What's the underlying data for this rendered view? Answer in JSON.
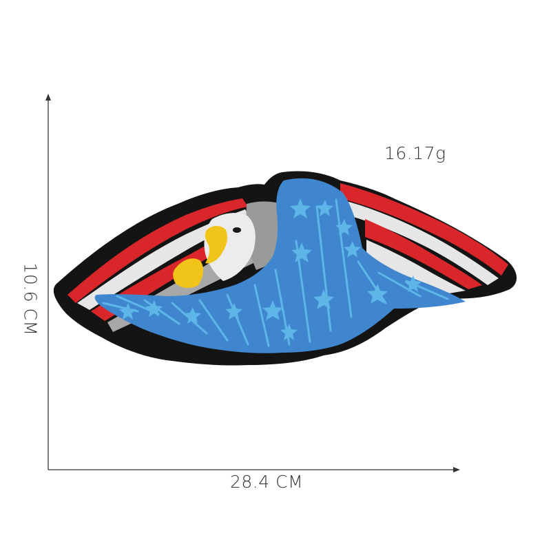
{
  "dimensions": {
    "width_label": "28.4 CM",
    "height_label": "10.6 CM"
  },
  "weight_label": "16.17g",
  "product": {
    "type": "embroidered eagle patch",
    "colors": {
      "backing": "#141414",
      "red": "#d8262b",
      "white": "#e8e8e8",
      "gray": "#9a9a9a",
      "blue": "#3f86cf",
      "light_blue": "#5db5e8",
      "yellow": "#f0c419"
    }
  }
}
